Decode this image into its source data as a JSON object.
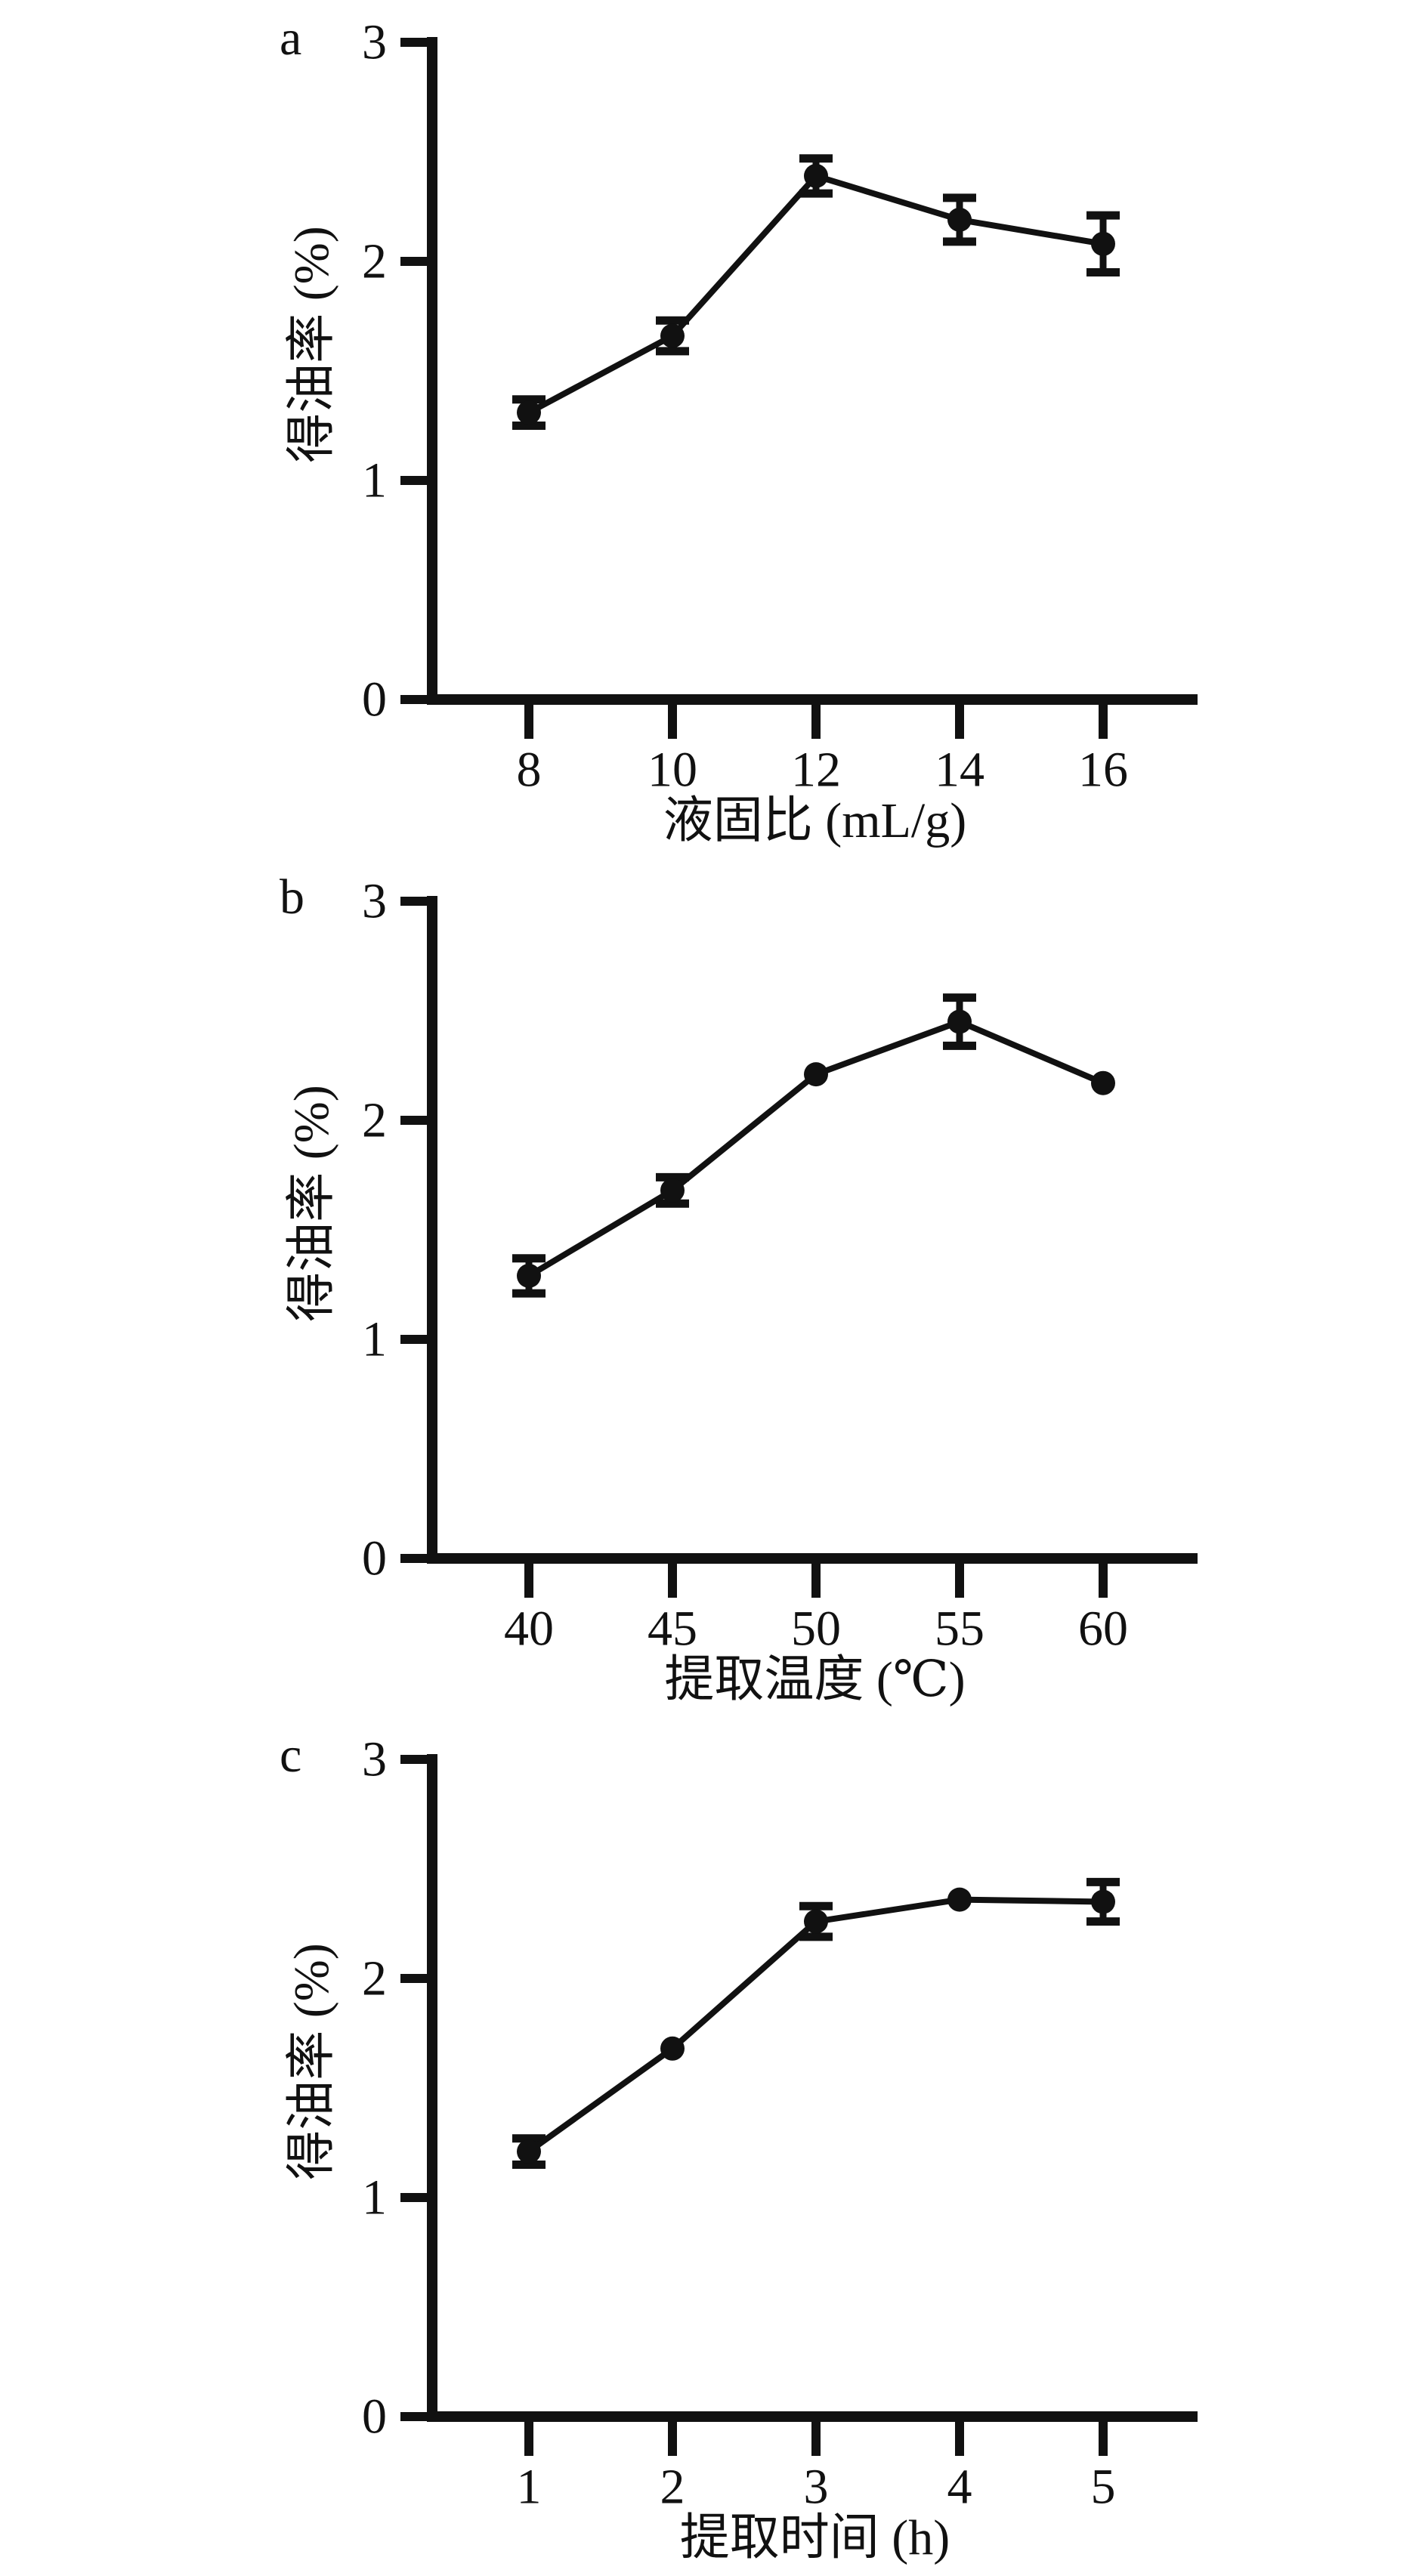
{
  "page": {
    "background_color": "#ffffff",
    "ink_color": "#111111",
    "description_labels": {
      "panel_a": "a",
      "panel_b": "b",
      "panel_c": "c"
    }
  },
  "chart_data": [
    {
      "type": "line",
      "panel_label": "a",
      "title": "",
      "xlabel": "液固比 (mL/g)",
      "ylabel": "得油率 (%)",
      "x": [
        8,
        10,
        12,
        14,
        16
      ],
      "xtick_labels": [
        "8",
        "10",
        "12",
        "14",
        "16"
      ],
      "values": [
        1.31,
        1.66,
        2.39,
        2.19,
        2.08
      ],
      "errors": [
        0.06,
        0.07,
        0.08,
        0.1,
        0.13
      ],
      "ytick_values": [
        0,
        1,
        2,
        3
      ],
      "ylim": [
        0,
        3
      ],
      "series_color": "#111111",
      "marker": "filled-circle",
      "error_bars": true,
      "grid": false,
      "legend": null
    },
    {
      "type": "line",
      "panel_label": "b",
      "title": "",
      "xlabel": "提取温度 (℃)",
      "ylabel": "得油率 (%)",
      "x": [
        40,
        45,
        50,
        55,
        60
      ],
      "xtick_labels": [
        "40",
        "45",
        "50",
        "55",
        "60"
      ],
      "values": [
        1.29,
        1.68,
        2.21,
        2.45,
        2.17
      ],
      "errors": [
        0.08,
        0.06,
        0.02,
        0.11,
        0.02
      ],
      "ytick_values": [
        0,
        1,
        2,
        3
      ],
      "ylim": [
        0,
        3
      ],
      "series_color": "#111111",
      "marker": "filled-circle",
      "error_bars": true,
      "grid": false,
      "legend": null
    },
    {
      "type": "line",
      "panel_label": "c",
      "title": "",
      "xlabel": "提取时间 (h)",
      "ylabel": "得油率 (%)",
      "x": [
        1,
        2,
        3,
        4,
        5
      ],
      "xtick_labels": [
        "1",
        "2",
        "3",
        "4",
        "5"
      ],
      "values": [
        1.21,
        1.68,
        2.26,
        2.36,
        2.35
      ],
      "errors": [
        0.06,
        0.05,
        0.07,
        0.02,
        0.09
      ],
      "ytick_values": [
        0,
        1,
        2,
        3
      ],
      "ylim": [
        0,
        3
      ],
      "series_color": "#111111",
      "marker": "filled-circle",
      "error_bars": true,
      "grid": false,
      "legend": null
    }
  ]
}
